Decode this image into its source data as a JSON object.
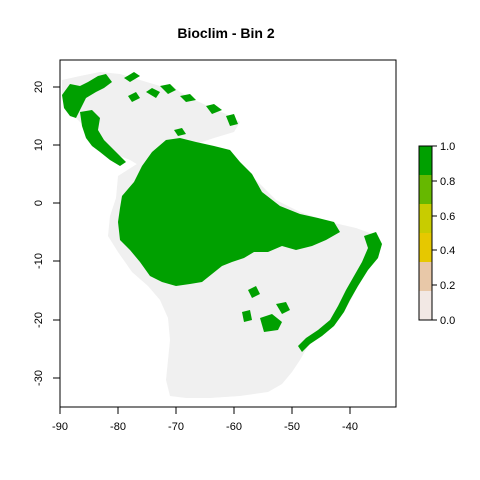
{
  "title": "Bioclim - Bin  2",
  "x_ticks": [
    "-90",
    "-80",
    "-70",
    "-60",
    "-50",
    "-40"
  ],
  "y_ticks": [
    "20",
    "10",
    "0",
    "-10",
    "-20",
    "-30"
  ],
  "legend": {
    "ticks": [
      "1.0",
      "0.8",
      "0.6",
      "0.4",
      "0.2",
      "0.0"
    ],
    "colors": [
      "#f2e8e4",
      "#e8c8a8",
      "#e6c800",
      "#c8cc00",
      "#66b800",
      "#00a000"
    ]
  },
  "map": {
    "land_color": "#f0f0f0",
    "suitable_color": "#00a000",
    "x_range": [
      -92,
      -32
    ],
    "y_range": [
      -35,
      24
    ]
  }
}
